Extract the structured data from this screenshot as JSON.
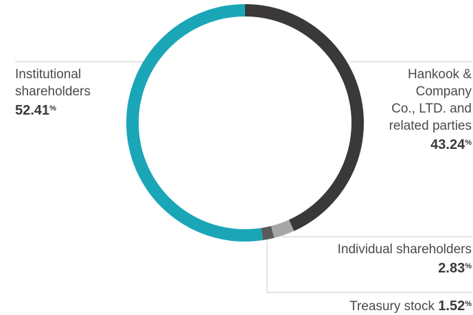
{
  "chart_data": {
    "type": "pie",
    "variant": "donut",
    "start": "top",
    "direction": "clockwise",
    "series": [
      {
        "name": "Hankook & Company Co., LTD. and related parties",
        "value": 43.24,
        "color": "#3b3839"
      },
      {
        "name": "Individual shareholders",
        "value": 2.83,
        "color": "#a6a6a6"
      },
      {
        "name": "Treasury stock",
        "value": 1.52,
        "color": "#5a5a5a"
      },
      {
        "name": "Institutional shareholders",
        "value": 52.41,
        "color": "#1aa6b7"
      }
    ],
    "labels": {
      "institutional": {
        "lines": [
          "Institutional",
          "shareholders"
        ],
        "value": "52.41",
        "unit": "%"
      },
      "hankook": {
        "lines": [
          "Hankook &",
          "Company",
          "Co., LTD. and",
          "related parties"
        ],
        "value": "43.24",
        "unit": "%"
      },
      "individual": {
        "lines": [
          "Individual shareholders"
        ],
        "value": "2.83",
        "unit": "%"
      },
      "treasury": {
        "lines": [
          "Treasury stock "
        ],
        "value": "1.52",
        "unit": "%"
      }
    },
    "leader_color": "#c8c8c8"
  }
}
